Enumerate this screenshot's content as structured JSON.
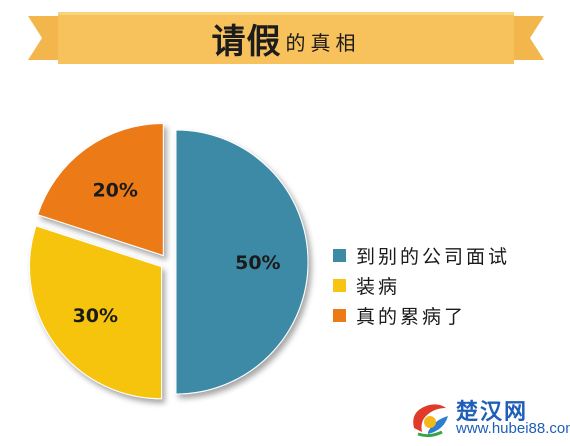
{
  "title": {
    "main": "请假",
    "sub": "的真相"
  },
  "colors": {
    "banner": "#f7c15b",
    "banner_edge": "#e8a93b",
    "slice_1": "#3d8aa6",
    "slice_2": "#f6c411",
    "slice_3": "#ec7a16"
  },
  "chart_data": {
    "type": "pie",
    "title": "请假的真相",
    "slices": [
      {
        "label": "到别的公司面试",
        "value": 50,
        "value_label": "50%",
        "color": "#3d8aa6"
      },
      {
        "label": "装病",
        "value": 30,
        "value_label": "30%",
        "color": "#f6c411"
      },
      {
        "label": "真的累病了",
        "value": 20,
        "value_label": "20%",
        "color": "#ec7a16"
      }
    ],
    "legend_position": "right"
  },
  "watermark": {
    "name": "楚汉网",
    "url": "www.hubei88.com"
  }
}
